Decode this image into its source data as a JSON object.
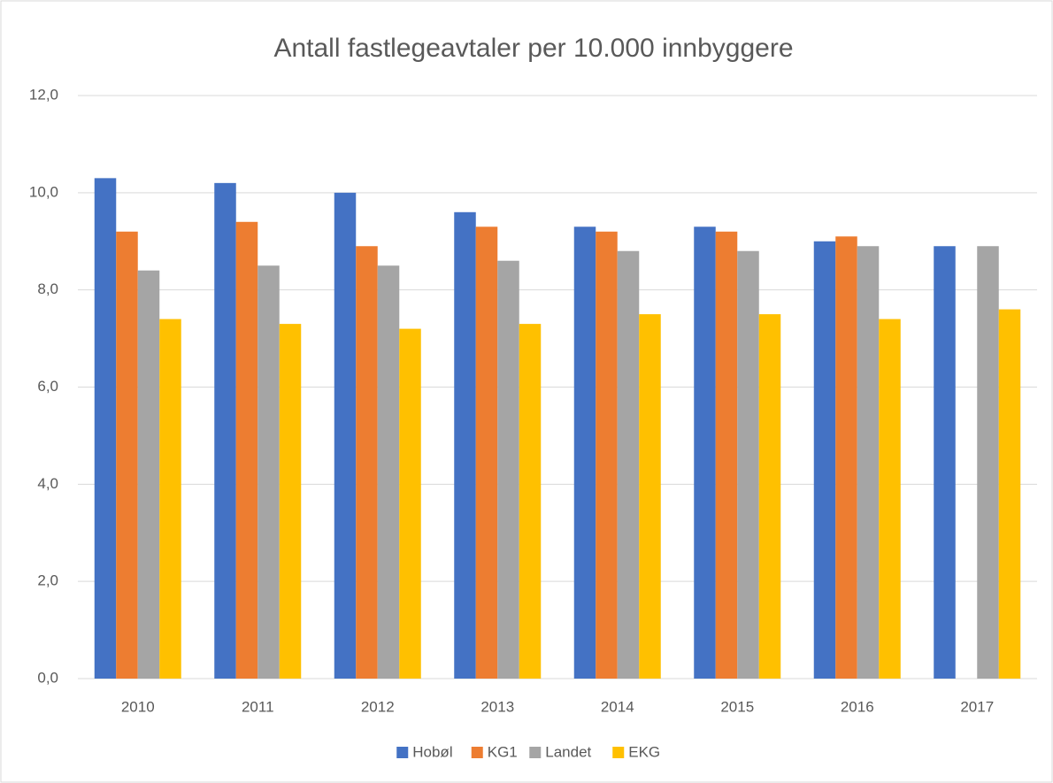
{
  "chart_data": {
    "type": "bar",
    "title": "Antall fastlegeavtaler per 10.000 innbyggere",
    "categories": [
      "2010",
      "2011",
      "2012",
      "2013",
      "2014",
      "2015",
      "2016",
      "2017"
    ],
    "series": [
      {
        "name": "Hobøl",
        "color": "#4472c4",
        "values": [
          10.3,
          10.2,
          10.0,
          9.6,
          9.3,
          9.3,
          9.0,
          8.9
        ]
      },
      {
        "name": "KG1",
        "color": "#ed7d31",
        "values": [
          9.2,
          9.4,
          8.9,
          9.3,
          9.2,
          9.2,
          9.1,
          null
        ]
      },
      {
        "name": "Landet",
        "color": "#a5a5a5",
        "values": [
          8.4,
          8.5,
          8.5,
          8.6,
          8.8,
          8.8,
          8.9,
          8.9
        ]
      },
      {
        "name": "EKG",
        "color": "#ffc000",
        "values": [
          7.4,
          7.3,
          7.2,
          7.3,
          7.5,
          7.5,
          7.4,
          7.6
        ]
      }
    ],
    "ylim": [
      0,
      12
    ],
    "yticks": [
      {
        "value": 0,
        "label": "0,0"
      },
      {
        "value": 2,
        "label": "2,0"
      },
      {
        "value": 4,
        "label": "4,0"
      },
      {
        "value": 6,
        "label": "6,0"
      },
      {
        "value": 8,
        "label": "8,0"
      },
      {
        "value": 10,
        "label": "10,0"
      },
      {
        "value": 12,
        "label": "12,0"
      }
    ],
    "grid": true,
    "legend": "bottom"
  }
}
